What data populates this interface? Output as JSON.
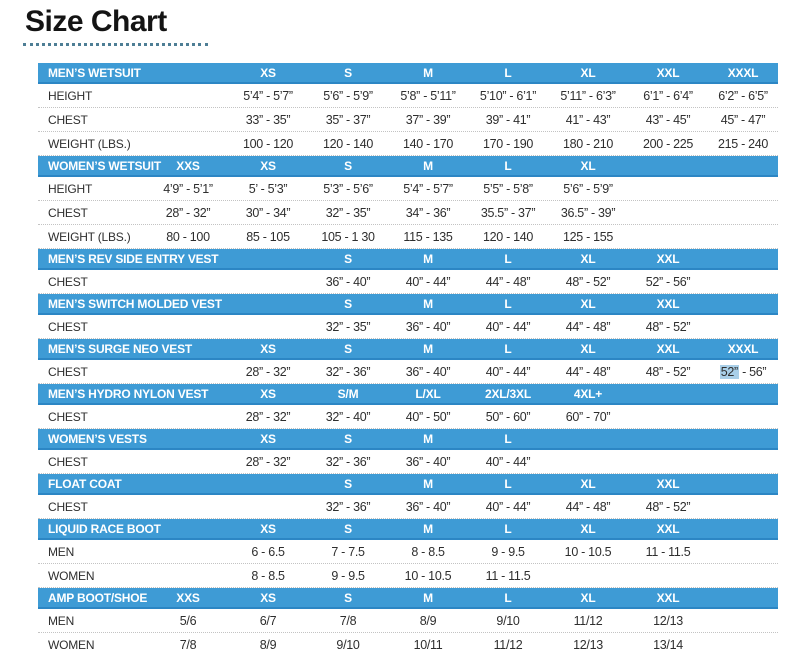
{
  "title": "Size Chart",
  "colors": {
    "bar": "#3E9BD5",
    "bar_border": "#2C86C4",
    "highlight": "#A9CFE8"
  },
  "tables": [
    {
      "name": "MEN’S WETSUIT",
      "slug": "mens-wetsuit",
      "cols": [
        "",
        "XS",
        "S",
        "M",
        "L",
        "XL",
        "XXL",
        "XXXL"
      ],
      "rows": [
        {
          "label": "HEIGHT",
          "cells": [
            "",
            "5’4” - 5’7”",
            "5’6” - 5’9”",
            "5’8” - 5’11”",
            "5’10” - 6’1”",
            "5’11” - 6’3”",
            "6’1” - 6’4”",
            "6’2” - 6’5”"
          ]
        },
        {
          "label": "CHEST",
          "cells": [
            "",
            "33” - 35”",
            "35” - 37”",
            "37” - 39”",
            "39” - 41”",
            "41” - 43”",
            "43” - 45”",
            "45” - 47”"
          ]
        },
        {
          "label": "WEIGHT (LBS.)",
          "cells": [
            "",
            "100 - 120",
            "120 - 140",
            "140 - 170",
            "170 - 190",
            "180 - 210",
            "200 - 225",
            "215 - 240"
          ]
        }
      ]
    },
    {
      "name": "WOMEN’S WETSUIT",
      "slug": "womens-wetsuit",
      "cols": [
        "XXS",
        "XS",
        "S",
        "M",
        "L",
        "XL",
        "",
        ""
      ],
      "rows": [
        {
          "label": "HEIGHT",
          "cells": [
            "4’9” - 5’1”",
            "5’ - 5’3”",
            "5’3” - 5’6”",
            "5’4” - 5’7”",
            "5’5” - 5’8”",
            "5’6” - 5’9”",
            "",
            ""
          ]
        },
        {
          "label": "CHEST",
          "cells": [
            "28” - 32”",
            "30” - 34”",
            "32” - 35”",
            "34” - 36”",
            "35.5” - 37”",
            "36.5” - 39”",
            "",
            ""
          ]
        },
        {
          "label": "WEIGHT (LBS.)",
          "cells": [
            "80 - 100",
            "85 - 105",
            "105 - 1 30",
            "115 - 135",
            "120 - 140",
            "125 - 155",
            "",
            ""
          ]
        }
      ]
    },
    {
      "name": "MEN’S REV SIDE ENTRY VEST",
      "slug": "mens-rev-side-entry-vest",
      "cols": [
        "",
        "",
        "S",
        "M",
        "L",
        "XL",
        "XXL",
        ""
      ],
      "rows": [
        {
          "label": "CHEST",
          "cells": [
            "",
            "",
            "36” - 40”",
            "40” - 44”",
            "44” - 48”",
            "48” - 52”",
            "52” - 56”",
            ""
          ]
        }
      ]
    },
    {
      "name": "MEN’S SWITCH MOLDED VEST",
      "slug": "mens-switch-molded-vest",
      "cols": [
        "",
        "",
        "S",
        "M",
        "L",
        "XL",
        "XXL",
        ""
      ],
      "rows": [
        {
          "label": "CHEST",
          "cells": [
            "",
            "",
            "32” - 35”",
            "36” - 40”",
            "40” - 44”",
            "44” - 48”",
            "48” - 52”",
            ""
          ]
        }
      ]
    },
    {
      "name": "MEN’S SURGE NEO VEST",
      "slug": "mens-surge-neo-vest",
      "cols": [
        "",
        "XS",
        "S",
        "M",
        "L",
        "XL",
        "XXL",
        "XXXL"
      ],
      "rows": [
        {
          "label": "CHEST",
          "cells": [
            "",
            "28” - 32”",
            "32” - 36”",
            "36” - 40”",
            "40” - 44”",
            "44” - 48”",
            "48” - 52”",
            {
              "parts": [
                {
                  "t": "52”",
                  "hl": true
                },
                {
                  "t": " - 56”"
                }
              ]
            }
          ]
        }
      ]
    },
    {
      "name": "MEN’S HYDRO NYLON VEST",
      "slug": "mens-hydro-nylon-vest",
      "cols": [
        "",
        "XS",
        "S/M",
        "L/XL",
        "2XL/3XL",
        "4XL+",
        "",
        ""
      ],
      "rows": [
        {
          "label": "CHEST",
          "cells": [
            "",
            "28” - 32”",
            "32” - 40”",
            "40” - 50”",
            "50” - 60”",
            "60” - 70”",
            "",
            ""
          ]
        }
      ]
    },
    {
      "name": "WOMEN’S VESTS",
      "slug": "womens-vests",
      "cols": [
        "",
        "XS",
        "S",
        "M",
        "L",
        "",
        "",
        ""
      ],
      "rows": [
        {
          "label": "CHEST",
          "cells": [
            "",
            "28” - 32”",
            "32” - 36”",
            "36” - 40”",
            "40” - 44”",
            "",
            "",
            ""
          ]
        }
      ]
    },
    {
      "name": "FLOAT COAT",
      "slug": "float-coat",
      "cols": [
        "",
        "",
        "S",
        "M",
        "L",
        "XL",
        "XXL",
        ""
      ],
      "rows": [
        {
          "label": "CHEST",
          "cells": [
            "",
            "",
            "32” - 36”",
            "36” - 40”",
            "40” - 44”",
            "44” - 48”",
            "48” - 52”",
            ""
          ]
        }
      ]
    },
    {
      "name": "LIQUID RACE BOOT",
      "slug": "liquid-race-boot",
      "cols": [
        "",
        "XS",
        "S",
        "M",
        "L",
        "XL",
        "XXL",
        ""
      ],
      "rows": [
        {
          "label": "MEN",
          "cells": [
            "",
            "6 - 6.5",
            "7 - 7.5",
            "8 - 8.5",
            "9 - 9.5",
            "10 - 10.5",
            "11 - 11.5",
            ""
          ]
        },
        {
          "label": "WOMEN",
          "cells": [
            "",
            "8 - 8.5",
            "9 - 9.5",
            "10 - 10.5",
            "11 - 11.5",
            "",
            "",
            ""
          ]
        }
      ]
    },
    {
      "name": "AMP BOOT/SHOE",
      "slug": "amp-boot-shoe",
      "cols": [
        "XXS",
        "XS",
        "S",
        "M",
        "L",
        "XL",
        "XXL",
        ""
      ],
      "rows": [
        {
          "label": "MEN",
          "cells": [
            "5/6",
            "6/7",
            "7/8",
            "8/9",
            "9/10",
            "11/12",
            "12/13",
            ""
          ]
        },
        {
          "label": "WOMEN",
          "cells": [
            "7/8",
            "8/9",
            "9/10",
            "10/11",
            "11/12",
            "12/13",
            "13/14",
            ""
          ]
        }
      ]
    }
  ]
}
